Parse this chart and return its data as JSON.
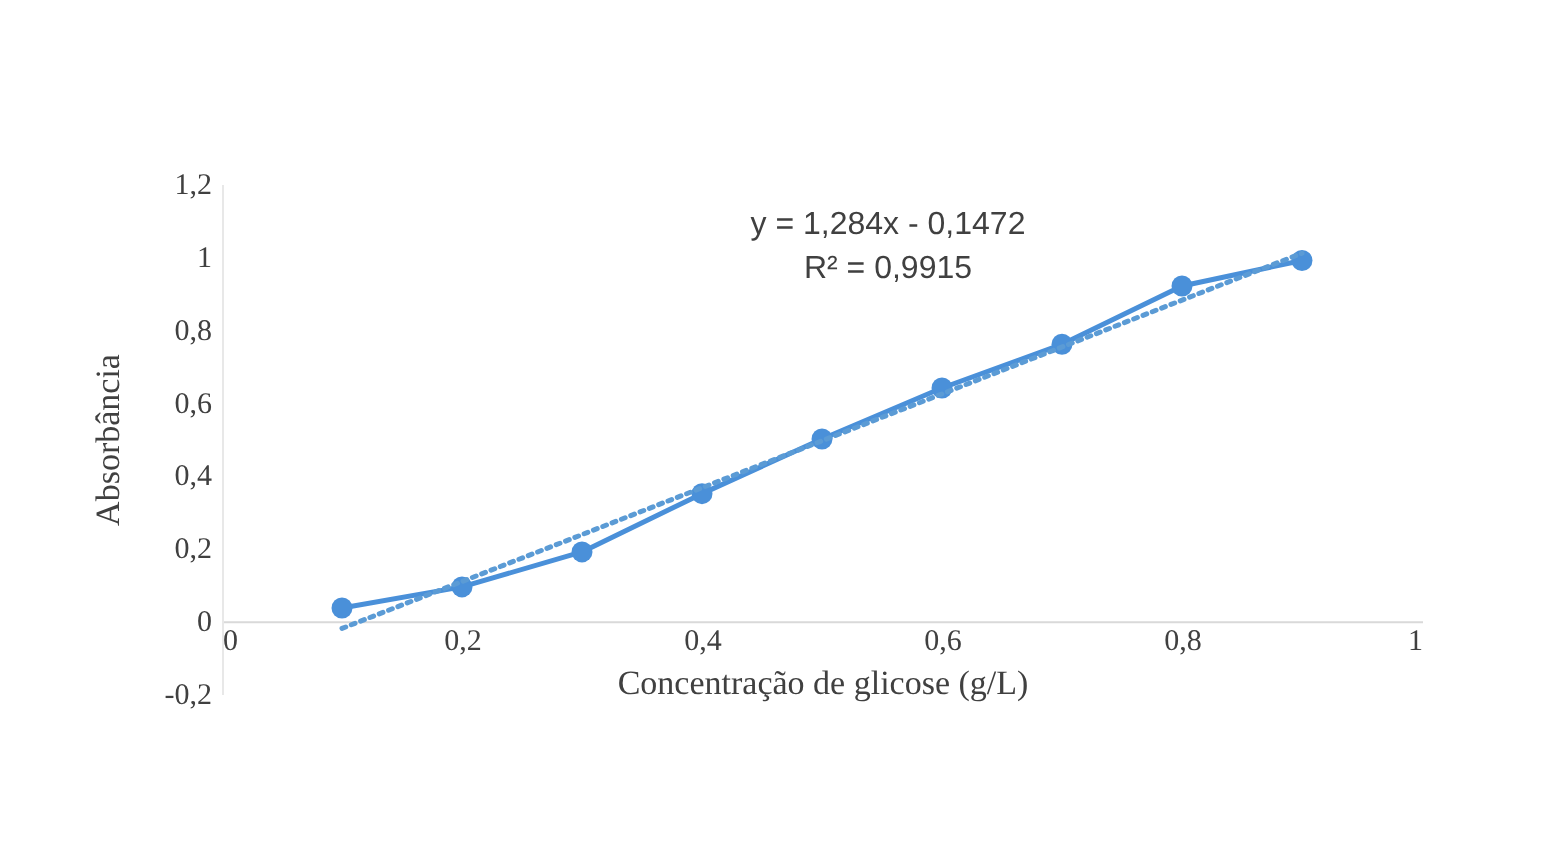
{
  "chart_data": {
    "type": "line",
    "xlabel": "Concentração de glicose (g/L)",
    "ylabel": "Absorbância",
    "xlim": [
      0,
      1
    ],
    "xticks": [
      {
        "value": 0,
        "label": "0"
      },
      {
        "value": 0.2,
        "label": "0,2"
      },
      {
        "value": 0.4,
        "label": "0,4"
      },
      {
        "value": 0.6,
        "label": "0,6"
      },
      {
        "value": 0.8,
        "label": "0,8"
      },
      {
        "value": 1,
        "label": "1"
      }
    ],
    "ylim": [
      -0.2,
      1.2
    ],
    "yticks": [
      {
        "value": -0.2,
        "label": "-0,2"
      },
      {
        "value": 0,
        "label": "0"
      },
      {
        "value": 0.2,
        "label": "0,2"
      },
      {
        "value": 0.4,
        "label": "0,4"
      },
      {
        "value": 0.6,
        "label": "0,6"
      },
      {
        "value": 0.8,
        "label": "0,8"
      },
      {
        "value": 1,
        "label": "1"
      },
      {
        "value": 1.2,
        "label": "1,2"
      }
    ],
    "grid": false,
    "legend": false,
    "annotations": [
      "y = 1,284x - 0,1472",
      "R² = 0,9915"
    ],
    "series": [
      {
        "type": "line",
        "color": "#4a90d9",
        "marker": "circle",
        "line_style": "solid",
        "x": [
          0.1,
          0.2,
          0.3,
          0.4,
          0.5,
          0.6,
          0.7,
          0.8,
          0.9
        ],
        "values": [
          0.036,
          0.094,
          0.19,
          0.35,
          0.5,
          0.64,
          0.76,
          0.92,
          0.99
        ]
      },
      {
        "type": "line",
        "color": "#5b9bd5",
        "marker": "none",
        "line_style": "dotted",
        "x": [
          0.1,
          0.9
        ],
        "values": [
          -0.02,
          1.01
        ]
      }
    ]
  }
}
